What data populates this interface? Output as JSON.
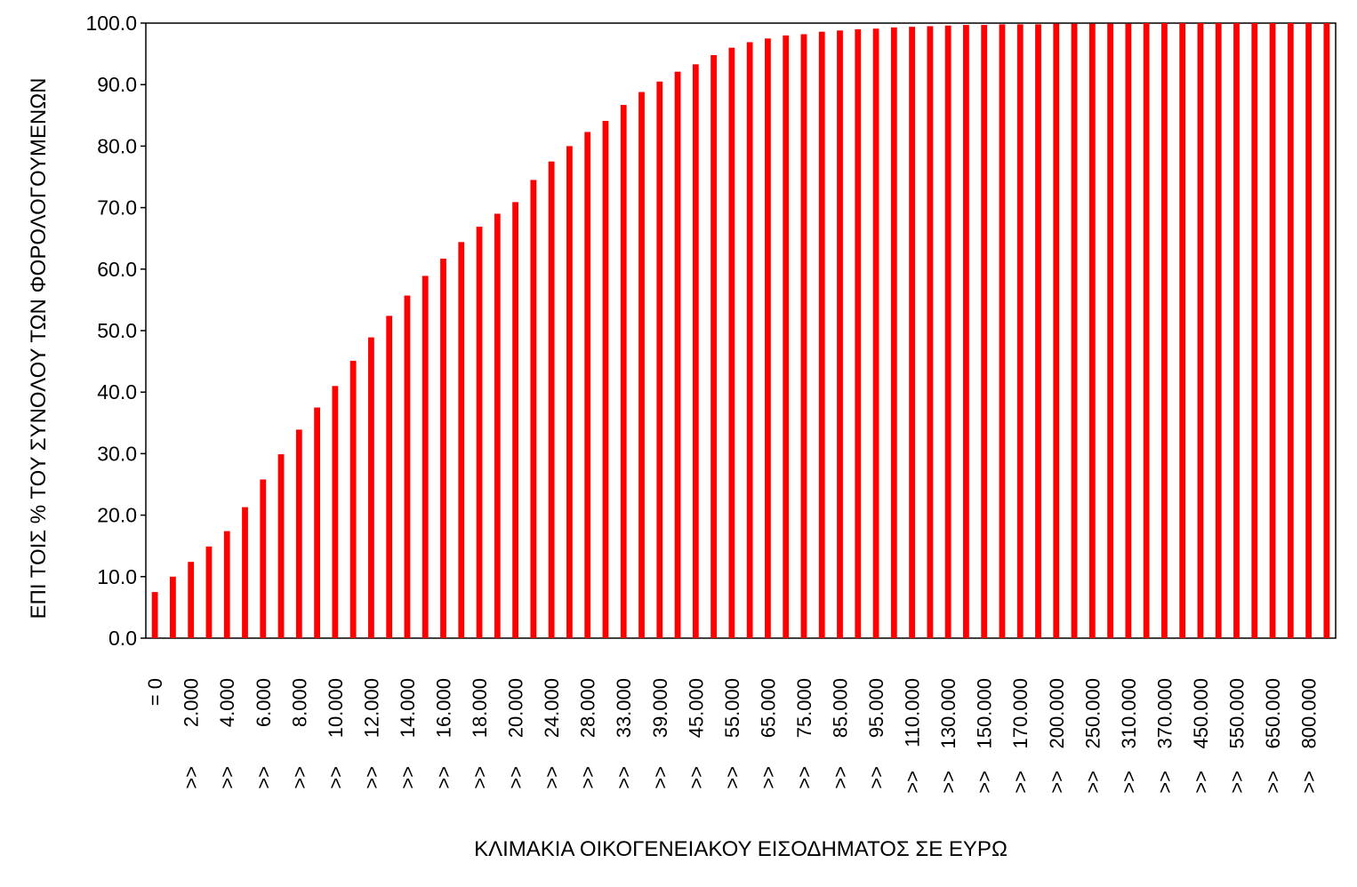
{
  "chart_data": {
    "type": "bar",
    "title": "",
    "xlabel": "ΚΛΙΜΑΚΙΑ ΟΙΚΟΓΕΝΕΙΑΚΟΥ ΕΙΣΟΔΗΜΑΤΟΣ ΣΕ ΕΥΡΩ",
    "ylabel": "ΕΠΙ ΤΟΙΣ % ΤΟΥ ΣΥΝΟΛΟΥ ΤΩΝ ΦΟΡΟΛΟΓΟΥΜΕΝΩΝ",
    "ylim": [
      0,
      100
    ],
    "yticks": [
      "0.0",
      "10.0",
      "20.0",
      "30.0",
      "40.0",
      "50.0",
      "60.0",
      "70.0",
      "80.0",
      "90.0",
      "100.0"
    ],
    "grid": false,
    "bar_color": "#ff0000",
    "category_labels": [
      {
        "index": 0,
        "text": "= 0",
        "prefix": ""
      },
      {
        "index": 2,
        "text": "2.000",
        "prefix": ">>"
      },
      {
        "index": 4,
        "text": "4.000",
        "prefix": ">>"
      },
      {
        "index": 6,
        "text": "6.000",
        "prefix": ">>"
      },
      {
        "index": 8,
        "text": "8.000",
        "prefix": ">>"
      },
      {
        "index": 10,
        "text": "10.000",
        "prefix": ">>"
      },
      {
        "index": 12,
        "text": "12.000",
        "prefix": ">>"
      },
      {
        "index": 14,
        "text": "14.000",
        "prefix": ">>"
      },
      {
        "index": 16,
        "text": "16.000",
        "prefix": ">>"
      },
      {
        "index": 18,
        "text": "18.000",
        "prefix": ">>"
      },
      {
        "index": 20,
        "text": "20.000",
        "prefix": ">>"
      },
      {
        "index": 22,
        "text": "24.000",
        "prefix": ">>"
      },
      {
        "index": 24,
        "text": "28.000",
        "prefix": ">>"
      },
      {
        "index": 26,
        "text": "33.000",
        "prefix": ">>"
      },
      {
        "index": 28,
        "text": "39.000",
        "prefix": ">>"
      },
      {
        "index": 30,
        "text": "45.000",
        "prefix": ">>"
      },
      {
        "index": 32,
        "text": "55.000",
        "prefix": ">>"
      },
      {
        "index": 34,
        "text": "65.000",
        "prefix": ">>"
      },
      {
        "index": 36,
        "text": "75.000",
        "prefix": ">>"
      },
      {
        "index": 38,
        "text": "85.000",
        "prefix": ">>"
      },
      {
        "index": 40,
        "text": "95.000",
        "prefix": ">>"
      },
      {
        "index": 42,
        "text": "110.000",
        "prefix": ">>"
      },
      {
        "index": 44,
        "text": "130.000",
        "prefix": ">>"
      },
      {
        "index": 46,
        "text": "150.000",
        "prefix": ">>"
      },
      {
        "index": 48,
        "text": "170.000",
        "prefix": ">>"
      },
      {
        "index": 50,
        "text": "200.000",
        "prefix": ">>"
      },
      {
        "index": 52,
        "text": "250.000",
        "prefix": ">>"
      },
      {
        "index": 54,
        "text": "310.000",
        "prefix": ">>"
      },
      {
        "index": 56,
        "text": "370.000",
        "prefix": ">>"
      },
      {
        "index": 58,
        "text": "450.000",
        "prefix": ">>"
      },
      {
        "index": 60,
        "text": "550.000",
        "prefix": ">>"
      },
      {
        "index": 62,
        "text": "650.000",
        "prefix": ">>"
      },
      {
        "index": 64,
        "text": "800.000",
        "prefix": ">>"
      }
    ],
    "values": [
      7.5,
      10.0,
      12.4,
      14.9,
      17.4,
      21.3,
      25.8,
      29.9,
      33.9,
      37.5,
      41.0,
      45.1,
      48.9,
      52.4,
      55.7,
      58.9,
      61.7,
      64.4,
      66.9,
      69.0,
      70.9,
      74.5,
      77.5,
      80.0,
      82.3,
      84.1,
      86.7,
      88.8,
      90.5,
      92.1,
      93.3,
      94.8,
      96.0,
      96.9,
      97.5,
      98.0,
      98.2,
      98.6,
      98.8,
      99.0,
      99.1,
      99.3,
      99.4,
      99.5,
      99.6,
      99.7,
      99.7,
      99.8,
      99.8,
      99.8,
      99.9,
      99.9,
      99.9,
      99.9,
      99.9,
      100.0,
      100.0,
      100.0,
      100.0,
      100.0,
      100.0,
      100.0,
      100.0,
      100.0,
      100.0,
      100.0
    ]
  }
}
